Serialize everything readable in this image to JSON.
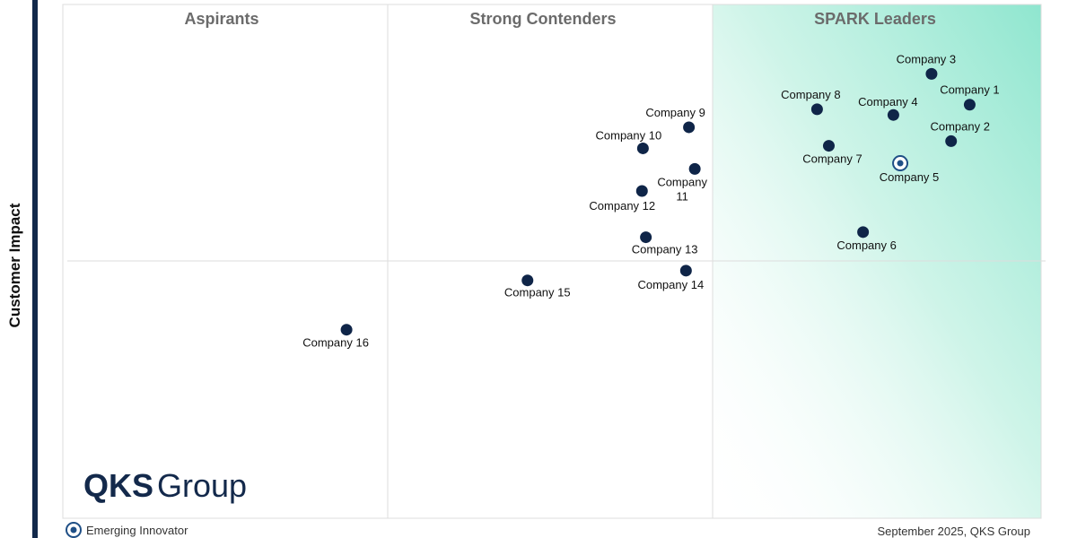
{
  "chart_data": {
    "type": "scatter",
    "title": "",
    "xlabel": "",
    "ylabel": "Customer Impact",
    "xlim": [
      0,
      100
    ],
    "ylim": [
      0,
      100
    ],
    "quadrants": [
      "Aspirants",
      "Strong Contenders",
      "SPARK Leaders"
    ],
    "points": [
      {
        "name": "Company 1",
        "x": 92.7,
        "y": 80.5
      },
      {
        "name": "Company 2",
        "x": 90.8,
        "y": 73.4
      },
      {
        "name": "Company 3",
        "x": 88.8,
        "y": 86.5
      },
      {
        "name": "Company 4",
        "x": 84.9,
        "y": 78.5
      },
      {
        "name": "Company 5",
        "x": 85.6,
        "y": 69.1,
        "emerging": true
      },
      {
        "name": "Company 6",
        "x": 81.8,
        "y": 55.7
      },
      {
        "name": "Company 7",
        "x": 78.3,
        "y": 72.5
      },
      {
        "name": "Company 8",
        "x": 77.1,
        "y": 79.6
      },
      {
        "name": "Company 9",
        "x": 64.0,
        "y": 76.1
      },
      {
        "name": "Company 10",
        "x": 59.3,
        "y": 72.0
      },
      {
        "name": "Company 11",
        "x": 64.6,
        "y": 68.0
      },
      {
        "name": "Company 12",
        "x": 59.2,
        "y": 63.7
      },
      {
        "name": "Company 13",
        "x": 59.6,
        "y": 54.7
      },
      {
        "name": "Company 14",
        "x": 63.7,
        "y": 48.2
      },
      {
        "name": "Company 15",
        "x": 47.5,
        "y": 46.3
      },
      {
        "name": "Company 16",
        "x": 29.0,
        "y": 36.7
      }
    ],
    "legend": "Emerging Innovator",
    "grid": true
  },
  "branding": {
    "logo_bold": "QKS",
    "logo_light": "Group"
  },
  "footer": {
    "date_source": "September 2025, QKS Group"
  },
  "colors": {
    "marker": "#0f2548",
    "accent_green": "#8fe6cf",
    "left_bar": "#13294b"
  }
}
